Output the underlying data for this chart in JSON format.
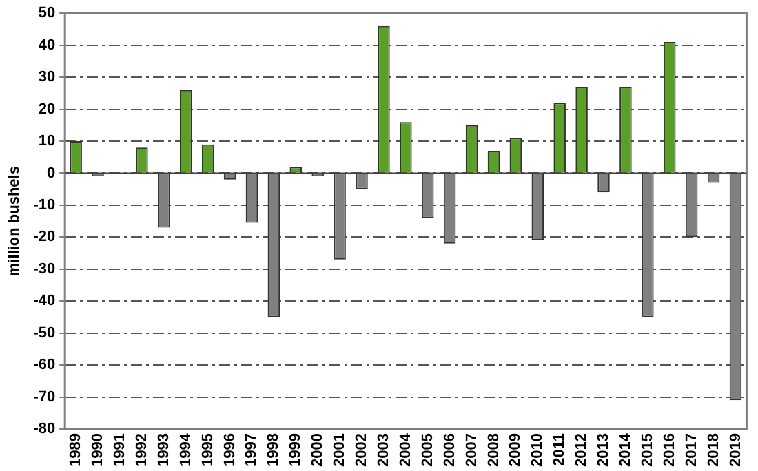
{
  "chart_data": {
    "type": "bar",
    "ylabel": "million bushels",
    "categories": [
      "1989",
      "1990",
      "1991",
      "1992",
      "1993",
      "1994",
      "1995",
      "1996",
      "1997",
      "1998",
      "1999",
      "2000",
      "2001",
      "2002",
      "2003",
      "2004",
      "2005",
      "2006",
      "2007",
      "2008",
      "2009",
      "2010",
      "2011",
      "2012",
      "2013",
      "2014",
      "2015",
      "2016",
      "2017",
      "2018",
      "2019"
    ],
    "values": [
      10,
      -1,
      null,
      8,
      -17,
      26,
      9,
      -2,
      -15.5,
      -45,
      2,
      -1,
      -27,
      -5,
      46,
      16,
      -14,
      -22,
      15,
      7,
      11,
      -21,
      22,
      27,
      -6,
      27,
      -45,
      41,
      -20,
      -3,
      -71
    ],
    "colors": [
      "#5b9f26",
      "#808080",
      "#808080",
      "#5b9f26",
      "#808080",
      "#5b9f26",
      "#5b9f26",
      "#808080",
      "#808080",
      "#808080",
      "#5b9f26",
      "#808080",
      "#808080",
      "#808080",
      "#5b9f26",
      "#5b9f26",
      "#808080",
      "#808080",
      "#5b9f26",
      "#5b9f26",
      "#5b9f26",
      "#808080",
      "#5b9f26",
      "#5b9f26",
      "#808080",
      "#5b9f26",
      "#808080",
      "#5b9f26",
      "#808080",
      "#808080",
      "#808080"
    ],
    "ylim": [
      -80,
      50
    ],
    "yticks": [
      -80,
      -70,
      -60,
      -50,
      -40,
      -30,
      -20,
      -10,
      0,
      10,
      20,
      30,
      40,
      50
    ],
    "grid": "y",
    "legend": false
  }
}
